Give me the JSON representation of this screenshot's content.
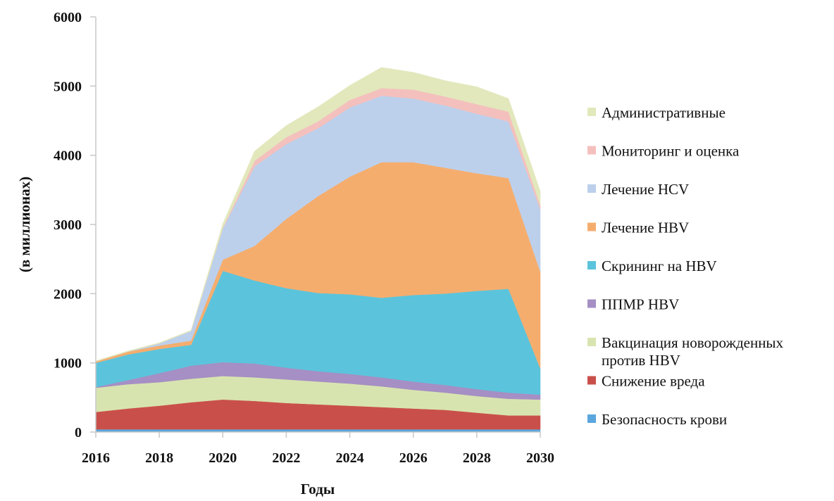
{
  "chart_data": {
    "type": "area",
    "stacked": true,
    "title": "",
    "xlabel": "Годы",
    "ylabel": "(в миллионах)",
    "x": [
      2016,
      2017,
      2018,
      2019,
      2020,
      2021,
      2022,
      2023,
      2024,
      2025,
      2026,
      2027,
      2028,
      2029,
      2030
    ],
    "xticks": [
      "2016",
      "2018",
      "2020",
      "2022",
      "2024",
      "2026",
      "2028",
      "2030"
    ],
    "yticks": [
      "0",
      "1000",
      "2000",
      "3000",
      "4000",
      "5000",
      "6000"
    ],
    "ylim": [
      0,
      6000
    ],
    "grid": false,
    "legend_position": "right",
    "series": [
      {
        "name": "Безопасность крови",
        "color": "#5aa6dd",
        "values": [
          40,
          40,
          40,
          40,
          40,
          40,
          40,
          40,
          40,
          40,
          40,
          40,
          40,
          40,
          40
        ]
      },
      {
        "name": "Снижение вреда",
        "color": "#c9504a",
        "values": [
          250,
          300,
          340,
          390,
          430,
          410,
          380,
          360,
          340,
          320,
          300,
          280,
          240,
          200,
          200
        ]
      },
      {
        "name": "Вакцинация новорожденных против HBV",
        "color": "#d8e4b0",
        "values": [
          350,
          350,
          340,
          340,
          340,
          340,
          340,
          330,
          320,
          300,
          270,
          250,
          240,
          240,
          230
        ]
      },
      {
        "name": "ППМР HBV",
        "color": "#a58fc4",
        "values": [
          10,
          60,
          130,
          190,
          200,
          200,
          170,
          150,
          140,
          130,
          120,
          110,
          100,
          90,
          70
        ]
      },
      {
        "name": "Скрининг на HBV",
        "color": "#5bc4dc",
        "values": [
          350,
          370,
          350,
          300,
          1320,
          1200,
          1150,
          1130,
          1150,
          1150,
          1250,
          1320,
          1420,
          1500,
          380
        ]
      },
      {
        "name": "Лечение HBV",
        "color": "#f5ad6e",
        "values": [
          20,
          40,
          50,
          60,
          160,
          500,
          1000,
          1400,
          1700,
          1960,
          1920,
          1820,
          1700,
          1600,
          1400
        ]
      },
      {
        "name": "Лечение HCV",
        "color": "#bcd0ec",
        "values": [
          0,
          0,
          30,
          140,
          450,
          1150,
          1080,
          980,
          1000,
          960,
          920,
          900,
          860,
          820,
          900
        ]
      },
      {
        "name": "Мониторинг и оценка",
        "color": "#f4c0bd",
        "values": [
          0,
          0,
          0,
          0,
          10,
          80,
          100,
          100,
          110,
          110,
          130,
          130,
          140,
          140,
          60
        ]
      },
      {
        "name": "Административные",
        "color": "#e2e8bc",
        "values": [
          10,
          10,
          10,
          10,
          60,
          140,
          170,
          210,
          210,
          300,
          250,
          230,
          250,
          190,
          200
        ]
      }
    ]
  }
}
